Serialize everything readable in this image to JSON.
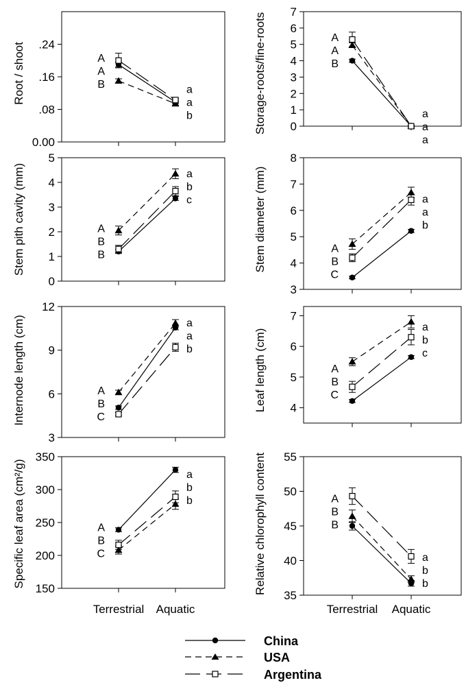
{
  "figure": {
    "x_categories": [
      "Terrestrial",
      "Aquatic"
    ],
    "legend": [
      {
        "name": "China",
        "marker": "circle-filled",
        "dash": "solid"
      },
      {
        "name": "USA",
        "marker": "triangle-filled",
        "dash": "short-dash"
      },
      {
        "name": "Argentina",
        "marker": "square-open",
        "dash": "long-dash"
      }
    ]
  },
  "chart_data": [
    {
      "type": "line",
      "title": "",
      "ylabel": "Root / shoot",
      "xlabel": "",
      "ylim": [
        0,
        0.32
      ],
      "yticks": [
        0,
        0.08,
        0.16,
        0.24
      ],
      "ytick_labels": [
        "0.00",
        ".08",
        ".16",
        ".24"
      ],
      "categories": [
        "Terrestrial",
        "Aquatic"
      ],
      "series": [
        {
          "name": "China",
          "values": [
            0.19,
            0.098
          ],
          "errors": [
            0.006,
            0.004
          ]
        },
        {
          "name": "USA",
          "values": [
            0.15,
            0.094
          ],
          "errors": [
            0.005,
            0.004
          ]
        },
        {
          "name": "Argentina",
          "values": [
            0.2,
            0.103
          ],
          "errors": [
            0.018,
            0.004
          ]
        }
      ],
      "letters_terrestrial": [
        "A",
        "A",
        "B"
      ],
      "letters_aquatic": [
        "a",
        "a",
        "b"
      ]
    },
    {
      "type": "line",
      "title": "",
      "ylabel": "Storage-roots/fine-roots",
      "xlabel": "",
      "ylim": [
        0,
        7
      ],
      "yticks": [
        0,
        1,
        2,
        3,
        4,
        5,
        6,
        7
      ],
      "ytick_labels": [
        "0",
        "1",
        "2",
        "3",
        "4",
        "5",
        "6",
        "7"
      ],
      "categories": [
        "Terrestrial",
        "Aquatic"
      ],
      "series": [
        {
          "name": "China",
          "values": [
            4.0,
            0.0
          ],
          "errors": [
            0.1,
            0.05
          ]
        },
        {
          "name": "USA",
          "values": [
            4.95,
            0.0
          ],
          "errors": [
            0.15,
            0.05
          ]
        },
        {
          "name": "Argentina",
          "values": [
            5.3,
            0.0
          ],
          "errors": [
            0.45,
            0.05
          ]
        }
      ],
      "letters_terrestrial": [
        "A",
        "A",
        "B"
      ],
      "letters_aquatic": [
        "a",
        "a",
        "a"
      ]
    },
    {
      "type": "line",
      "title": "",
      "ylabel": "Stem pith cavity (mm)",
      "xlabel": "",
      "ylim": [
        0,
        5
      ],
      "yticks": [
        0,
        1,
        2,
        3,
        4,
        5
      ],
      "ytick_labels": [
        "0",
        "1",
        "2",
        "3",
        "4",
        "5"
      ],
      "categories": [
        "Terrestrial",
        "Aquatic"
      ],
      "series": [
        {
          "name": "China",
          "values": [
            1.2,
            3.35
          ],
          "errors": [
            0.08,
            0.08
          ]
        },
        {
          "name": "USA",
          "values": [
            2.05,
            4.35
          ],
          "errors": [
            0.18,
            0.2
          ]
        },
        {
          "name": "Argentina",
          "values": [
            1.3,
            3.65
          ],
          "errors": [
            0.15,
            0.18
          ]
        }
      ],
      "letters_terrestrial": [
        "A",
        "B",
        "B"
      ],
      "letters_aquatic": [
        "a",
        "b",
        "c"
      ]
    },
    {
      "type": "line",
      "title": "",
      "ylabel": "Stem diameter (mm)",
      "xlabel": "",
      "ylim": [
        3,
        8
      ],
      "yticks": [
        3,
        4,
        5,
        6,
        7,
        8
      ],
      "ytick_labels": [
        "3",
        "4",
        "5",
        "6",
        "7",
        "8"
      ],
      "categories": [
        "Terrestrial",
        "Aquatic"
      ],
      "series": [
        {
          "name": "China",
          "values": [
            3.45,
            5.22
          ],
          "errors": [
            0.05,
            0.06
          ]
        },
        {
          "name": "USA",
          "values": [
            4.72,
            6.68
          ],
          "errors": [
            0.2,
            0.2
          ]
        },
        {
          "name": "Argentina",
          "values": [
            4.2,
            6.4
          ],
          "errors": [
            0.15,
            0.2
          ]
        }
      ],
      "letters_terrestrial": [
        "A",
        "B",
        "C"
      ],
      "letters_aquatic": [
        "a",
        "a",
        "b"
      ]
    },
    {
      "type": "line",
      "title": "",
      "ylabel": "Internode length (cm)",
      "xlabel": "",
      "ylim": [
        3,
        12
      ],
      "yticks": [
        3,
        6,
        9,
        12
      ],
      "ytick_labels": [
        "3",
        "6",
        "9",
        "12"
      ],
      "categories": [
        "Terrestrial",
        "Aquatic"
      ],
      "series": [
        {
          "name": "China",
          "values": [
            5.05,
            10.55
          ],
          "errors": [
            0.12,
            0.15
          ]
        },
        {
          "name": "USA",
          "values": [
            6.1,
            10.85
          ],
          "errors": [
            0.15,
            0.25
          ]
        },
        {
          "name": "Argentina",
          "values": [
            4.6,
            9.2
          ],
          "errors": [
            0.12,
            0.28
          ]
        }
      ],
      "letters_terrestrial": [
        "A",
        "B",
        "C"
      ],
      "letters_aquatic": [
        "a",
        "a",
        "b"
      ]
    },
    {
      "type": "line",
      "title": "",
      "ylabel": "Leaf length (cm)",
      "xlabel": "",
      "ylim": [
        3.5,
        7.3
      ],
      "yticks": [
        4,
        5,
        6,
        7
      ],
      "ytick_labels": [
        "4",
        "5",
        "6",
        "7"
      ],
      "categories": [
        "Terrestrial",
        "Aquatic"
      ],
      "series": [
        {
          "name": "China",
          "values": [
            4.22,
            5.65
          ],
          "errors": [
            0.05,
            0.05
          ]
        },
        {
          "name": "USA",
          "values": [
            5.5,
            6.8
          ],
          "errors": [
            0.13,
            0.2
          ]
        },
        {
          "name": "Argentina",
          "values": [
            4.68,
            6.3
          ],
          "errors": [
            0.18,
            0.25
          ]
        }
      ],
      "letters_terrestrial": [
        "A",
        "B",
        "C"
      ],
      "letters_aquatic": [
        "a",
        "b",
        "c"
      ]
    },
    {
      "type": "line",
      "title": "",
      "ylabel": "Specific leaf area (cm²/g)",
      "xlabel": "",
      "ylim": [
        150,
        350
      ],
      "yticks": [
        150,
        200,
        250,
        300,
        350
      ],
      "ytick_labels": [
        "150",
        "200",
        "250",
        "300",
        "350"
      ],
      "categories": [
        "Terrestrial",
        "Aquatic"
      ],
      "series": [
        {
          "name": "China",
          "values": [
            239,
            330
          ],
          "errors": [
            3,
            4
          ]
        },
        {
          "name": "USA",
          "values": [
            208,
            278
          ],
          "errors": [
            6,
            8
          ]
        },
        {
          "name": "Argentina",
          "values": [
            216,
            289
          ],
          "errors": [
            7,
            9
          ]
        }
      ],
      "letters_terrestrial": [
        "A",
        "B",
        "C"
      ],
      "letters_aquatic": [
        "a",
        "b",
        "b"
      ]
    },
    {
      "type": "line",
      "title": "",
      "ylabel": "Relative chlorophyll content",
      "xlabel": "",
      "ylim": [
        35,
        55
      ],
      "yticks": [
        35,
        40,
        45,
        50,
        55
      ],
      "ytick_labels": [
        "35",
        "40",
        "45",
        "50",
        "55"
      ],
      "categories": [
        "Terrestrial",
        "Aquatic"
      ],
      "series": [
        {
          "name": "China",
          "values": [
            45.0,
            36.7
          ],
          "errors": [
            0.6,
            0.4
          ]
        },
        {
          "name": "USA",
          "values": [
            46.4,
            37.3
          ],
          "errors": [
            0.9,
            0.5
          ]
        },
        {
          "name": "Argentina",
          "values": [
            49.3,
            40.6
          ],
          "errors": [
            1.2,
            1.0
          ]
        }
      ],
      "letters_terrestrial": [
        "A",
        "B",
        "B"
      ],
      "letters_aquatic": [
        "a",
        "b",
        "b"
      ]
    }
  ]
}
